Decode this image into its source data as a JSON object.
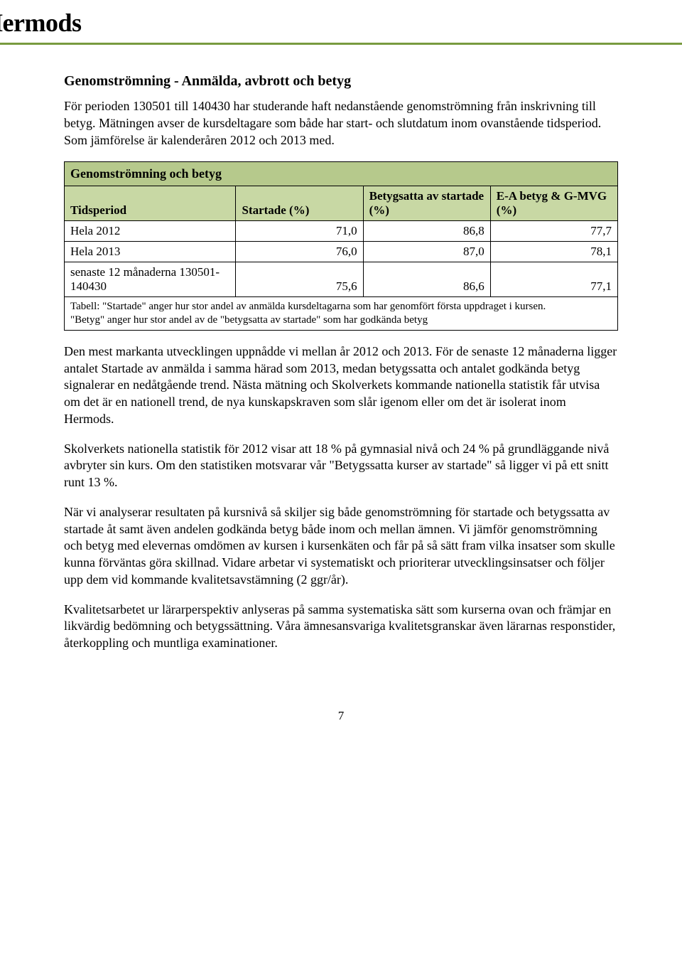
{
  "logo": {
    "mark_letter": "H",
    "wordmark": "Hermods"
  },
  "heading": "Genomströmning - Anmälda, avbrott och betyg",
  "intro_p1": "För perioden 130501 till 140430 har studerande haft nedanstående genomströmning från inskrivning till betyg. Mätningen avser de kursdeltagare som både har start- och slutdatum inom ovanstående tidsperiod. Som jämförelse är kalenderåren 2012 och 2013 med.",
  "table": {
    "title": "Genomströmning och betyg",
    "columns": [
      "Tidsperiod",
      "Startade (%)",
      "Betygsatta av startade (%)",
      "E-A betyg & G-MVG (%)"
    ],
    "rows": [
      {
        "label": "Hela 2012",
        "startade": "71,0",
        "betygsatta": "86,8",
        "ea": "77,7"
      },
      {
        "label": "Hela 2013",
        "startade": "76,0",
        "betygsatta": "87,0",
        "ea": "78,1"
      },
      {
        "label": "senaste 12 månaderna 130501-140430",
        "startade": "75,6",
        "betygsatta": "86,6",
        "ea": "77,1"
      }
    ],
    "footnote": "Tabell: \"Startade\" anger hur stor andel av anmälda kursdeltagarna som har genomfört första uppdraget i kursen.\n\"Betyg\" anger hur stor andel av de \"betygsatta av startade\" som har godkända betyg"
  },
  "body_p1": "Den mest markanta utvecklingen uppnådde vi mellan år 2012 och 2013. För de senaste 12 månaderna ligger antalet Startade av anmälda i samma härad som 2013, medan betygssatta och antalet godkända betyg signalerar en nedåtgående trend. Nästa mätning och Skolverkets kommande nationella statistik får utvisa om det är en nationell trend, de nya kunskapskraven som slår igenom eller om det är isolerat inom Hermods.",
  "body_p2": "Skolverkets nationella statistik för 2012 visar att 18 % på gymnasial nivå och 24 % på grundläggande nivå avbryter sin kurs. Om den statistiken motsvarar vår \"Betygssatta kurser av startade\" så ligger vi på ett snitt runt 13 %.",
  "body_p3": "När vi analyserar resultaten på kursnivå så skiljer sig både genomströmning för startade och betygssatta av startade åt samt även andelen godkända betyg både inom och mellan ämnen. Vi jämför genomströmning och betyg med elevernas omdömen av kursen i kursenkäten och får på så sätt fram vilka insatser som skulle kunna förväntas göra skillnad. Vidare arbetar vi systematiskt och prioriterar utvecklingsinsatser och följer upp dem vid kommande kvalitetsavstämning (2 ggr/år).",
  "body_p4": "Kvalitetsarbetet ur lärarperspektiv anlyseras på samma systematiska sätt som kurserna ovan och främjar en likvärdig bedömning och betygssättning. Våra ämnesansvariga kvalitetsgranskar även lärarnas responstider, återkoppling och muntliga examinationer.",
  "page_number": "7",
  "colors": {
    "accent_rule": "#789b3f",
    "logo_badge": "#a0c84a",
    "table_title_bg": "#b6c98c",
    "table_header_bg": "#c8d8a4",
    "border": "#000000"
  }
}
